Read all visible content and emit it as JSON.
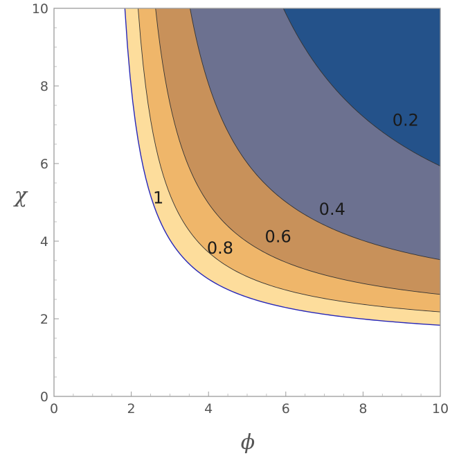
{
  "chart_data": {
    "type": "contour",
    "xlabel": "ϕ",
    "ylabel": "χ",
    "xlim": [
      0,
      10
    ],
    "ylim": [
      0,
      10
    ],
    "x_ticks": [
      "0",
      "2",
      "4",
      "6",
      "8",
      "10"
    ],
    "y_ticks": [
      "0",
      "2",
      "4",
      "6",
      "8",
      "10"
    ],
    "grid": false,
    "contour_function": "1/(x^2*y^2) approx, levels by exp(-(x-1.5)*(y-1.5)/20)",
    "levels": [
      {
        "value": 1,
        "label": "1",
        "label_at": [
          2.7,
          5.1
        ],
        "fill": "#FDDD9C"
      },
      {
        "value": 0.8,
        "label": "0.8",
        "label_at": [
          4.3,
          3.8
        ],
        "fill": "#EFB66A"
      },
      {
        "value": 0.6,
        "label": "0.6",
        "label_at": [
          5.8,
          4.1
        ],
        "fill": "#C8915A"
      },
      {
        "value": 0.4,
        "label": "0.4",
        "label_at": [
          7.2,
          4.8
        ],
        "fill": "#6C7190"
      },
      {
        "value": 0.2,
        "label": "0.2",
        "label_at": [
          9.1,
          7.1
        ],
        "fill": "#24528A"
      }
    ],
    "region_below_lowest": "#FFFFFF"
  }
}
